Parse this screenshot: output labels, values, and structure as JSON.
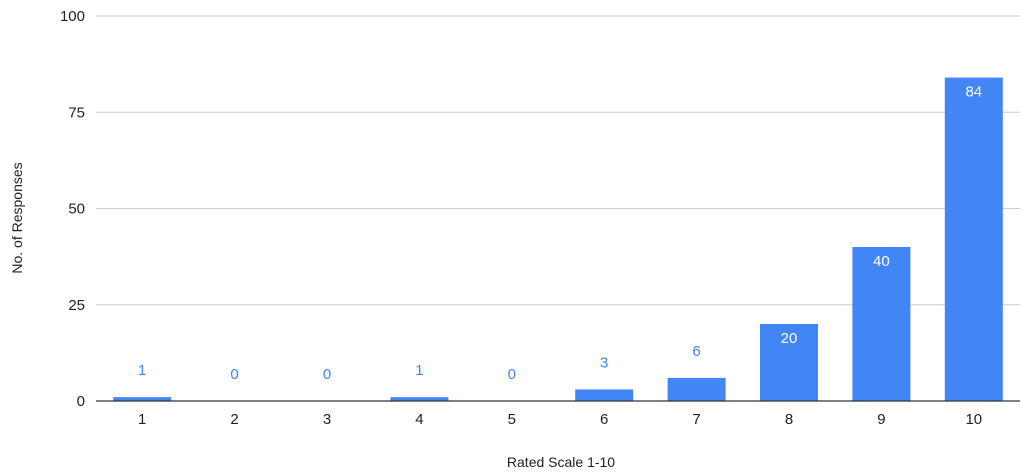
{
  "chart_data": {
    "type": "bar",
    "title": "",
    "xlabel": "Rated Scale 1-10",
    "ylabel": "No. of Responses",
    "categories": [
      "1",
      "2",
      "3",
      "4",
      "5",
      "6",
      "7",
      "8",
      "9",
      "10"
    ],
    "values": [
      1,
      0,
      0,
      1,
      0,
      3,
      6,
      20,
      40,
      84
    ],
    "ylim": [
      0,
      100
    ],
    "yticks": [
      0,
      25,
      50,
      75,
      100
    ],
    "grid": true,
    "legend": "none",
    "colors": {
      "bar": "#4285f4",
      "grid": "#cccccc",
      "axis": "#333333",
      "label_outside": "#4285f4",
      "label_inside": "#ffffff"
    }
  }
}
